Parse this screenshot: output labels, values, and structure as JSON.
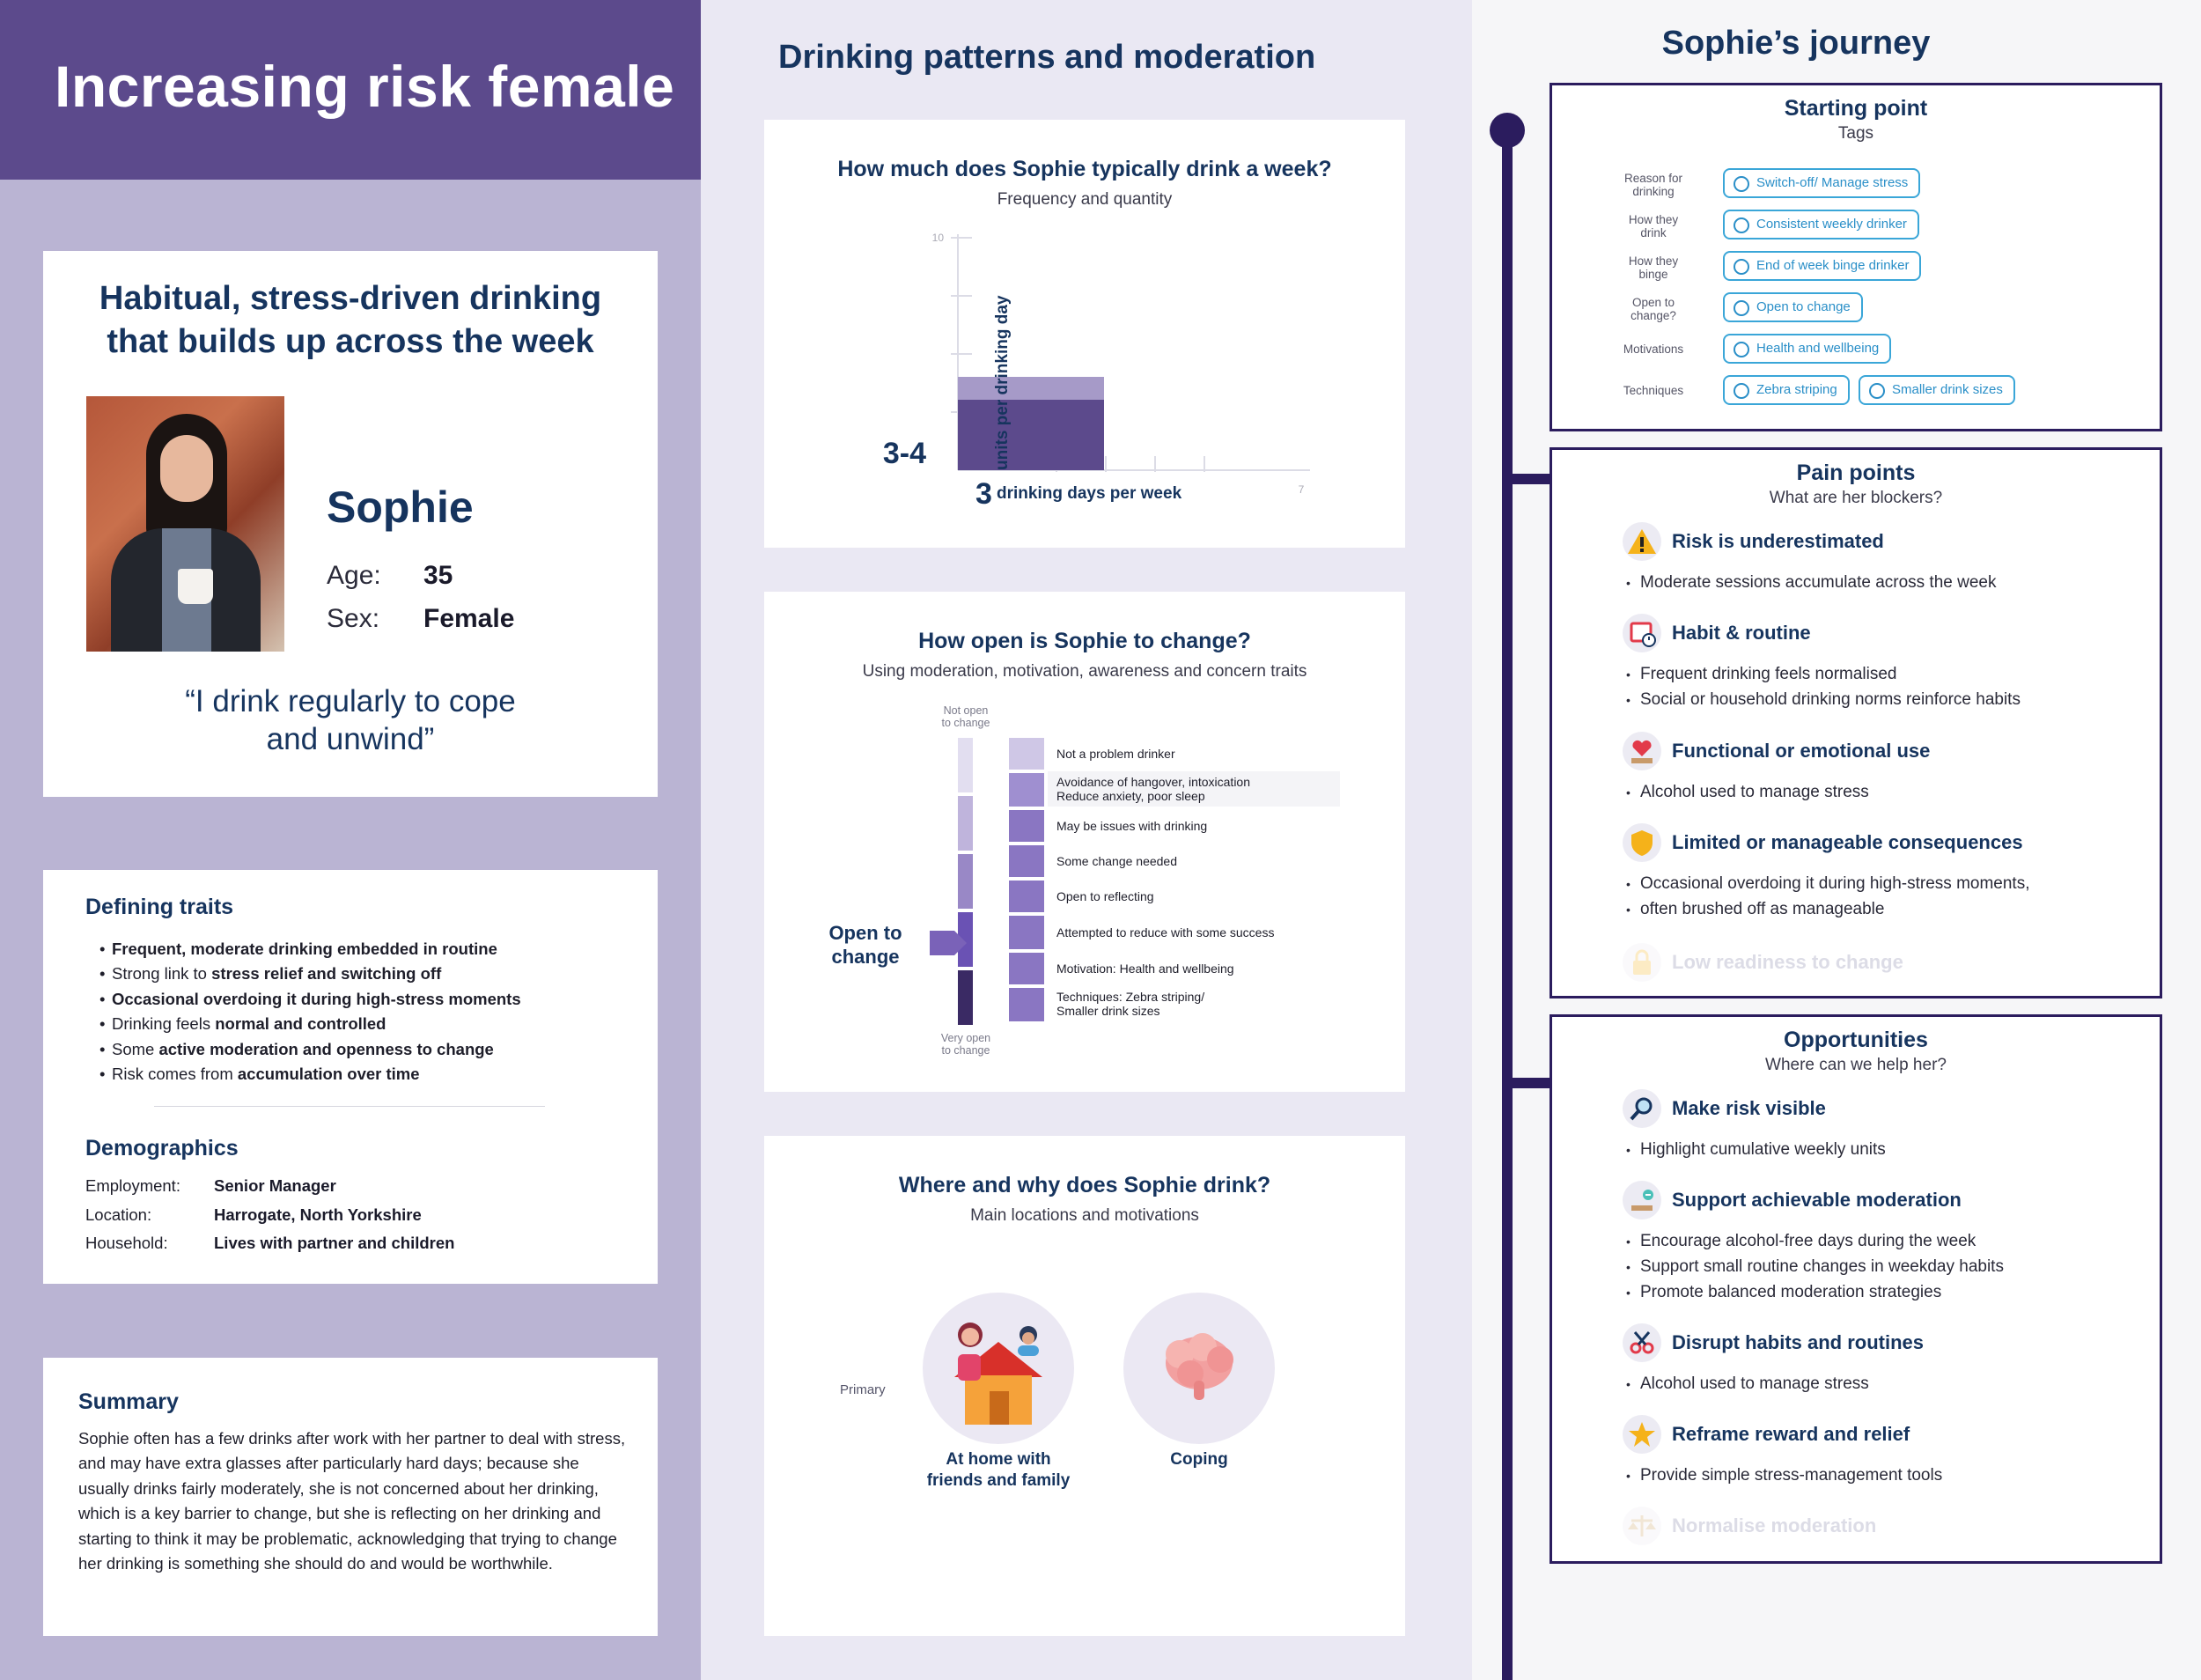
{
  "persona": {
    "header": "Increasing risk female",
    "profile_title_line1": "Habitual, stress-driven drinking",
    "profile_title_line2": "that builds up across the week",
    "name": "Sophie",
    "age_label": "Age:",
    "age": "35",
    "sex_label": "Sex:",
    "sex": "Female",
    "quote_line1": "“I drink regularly to cope",
    "quote_line2": "and unwind”"
  },
  "traits": {
    "title": "Defining traits",
    "items": [
      {
        "pre": "",
        "bold": "Frequent, moderate drinking embedded in routine",
        "post": ""
      },
      {
        "pre": "Strong link to ",
        "bold": "stress relief and switching off",
        "post": ""
      },
      {
        "pre": "",
        "bold": "Occasional overdoing it during high-stress moments",
        "post": ""
      },
      {
        "pre": "Drinking feels ",
        "bold": "normal and controlled",
        "post": ""
      },
      {
        "pre": "Some ",
        "bold": "active moderation and openness to change",
        "post": ""
      },
      {
        "pre": "Risk comes from ",
        "bold": "accumulation over time",
        "post": ""
      }
    ]
  },
  "demographics": {
    "title": "Demographics",
    "rows": [
      {
        "label": "Employment:",
        "value": "Senior Manager"
      },
      {
        "label": "Location:",
        "value": "Harrogate, North Yorkshire"
      },
      {
        "label": "Household:",
        "value": "Lives with partner and children"
      }
    ]
  },
  "summary": {
    "title": "Summary",
    "text": "Sophie often has a few drinks after work with her partner to deal with stress, and may have extra glasses after particularly hard days; because she usually drinks fairly moderately, she is not concerned about her drinking, which is a key barrier to change, but she is reflecting on her drinking and starting to think it may be problematic, acknowledging that trying to change her drinking is something she should do and would be worthwhile."
  },
  "middle": {
    "title": "Drinking patterns and moderation"
  },
  "frequency": {
    "title": "How much does Sophie typically drink a week?",
    "subtitle": "Frequency and quantity",
    "y_max_label": "10",
    "x_max_label": "7",
    "y_axis_label": "units per drinking day",
    "units_value": "3-4",
    "days_value": "3",
    "days_label": "drinking days per week"
  },
  "change": {
    "title": "How open is Sophie to change?",
    "subtitle": "Using moderation, motivation, awareness and concern traits",
    "top_label_1": "Not open",
    "top_label_2": "to change",
    "bottom_label_1": "Very open",
    "bottom_label_2": "to change",
    "marker_label_1": "Open to",
    "marker_label_2": "change",
    "levels": [
      {
        "line1": "Not a problem drinker",
        "line2": ""
      },
      {
        "line1": "Avoidance of hangover, intoxication",
        "line2": "Reduce anxiety, poor sleep"
      },
      {
        "line1": "May be issues with drinking",
        "line2": ""
      },
      {
        "line1": "Some change needed",
        "line2": ""
      },
      {
        "line1": "Open to reflecting",
        "line2": ""
      },
      {
        "line1": "Attempted to reduce with some success",
        "line2": ""
      },
      {
        "line1": "Motivation: Health and wellbeing",
        "line2": ""
      },
      {
        "line1": "Techniques: Zebra striping/",
        "line2": "Smaller drink sizes"
      }
    ]
  },
  "where": {
    "title": "Where and why does Sophie drink?",
    "subtitle": "Main locations and motivations",
    "primary_label": "Primary",
    "location_line1": "At home with",
    "location_line2": "friends and family",
    "motivation": "Coping"
  },
  "journey": {
    "title": "Sophie’s journey",
    "starting": {
      "title": "Starting point",
      "subtitle": "Tags",
      "rows": [
        {
          "label1": "Reason for",
          "label2": "drinking",
          "tags": [
            "Switch-off/ Manage stress"
          ]
        },
        {
          "label1": "How they",
          "label2": "drink",
          "tags": [
            "Consistent weekly drinker"
          ]
        },
        {
          "label1": "How they",
          "label2": "binge",
          "tags": [
            "End of week binge drinker"
          ]
        },
        {
          "label1": "Open to",
          "label2": "change?",
          "tags": [
            "Open to change"
          ]
        },
        {
          "label1": "Motivations",
          "label2": "",
          "tags": [
            "Health and  wellbeing"
          ]
        },
        {
          "label1": "Techniques",
          "label2": "",
          "tags": [
            "Zebra striping",
            "Smaller drink sizes"
          ]
        }
      ]
    },
    "pain": {
      "title": "Pain points",
      "subtitle": "What are her blockers?",
      "items": [
        {
          "icon": "warning-icon",
          "head": "Risk is underestimated",
          "bullets": [
            "Moderate sessions accumulate across the week"
          ]
        },
        {
          "icon": "calendar-clock-icon",
          "head": "Habit & routine",
          "bullets": [
            "Frequent drinking feels normalised",
            "Social or household drinking norms reinforce habits"
          ]
        },
        {
          "icon": "heart-glass-icon",
          "head": "Functional or emotional use",
          "bullets": [
            "Alcohol used to manage stress"
          ]
        },
        {
          "icon": "shield-icon",
          "head": "Limited or manageable consequences",
          "bullets": [
            "Occasional overdoing it during high-stress moments,",
            "often brushed off as manageable"
          ]
        },
        {
          "icon": "lock-icon",
          "head": "Low readiness to change",
          "bullets": []
        }
      ]
    },
    "opps": {
      "title": "Opportunities",
      "subtitle": "Where can we help her?",
      "items": [
        {
          "icon": "magnifier-icon",
          "head": "Make risk visible",
          "bullets": [
            "Highlight cumulative weekly units"
          ]
        },
        {
          "icon": "minus-glass-icon",
          "head": "Support achievable moderation",
          "bullets": [
            "Encourage alcohol-free days during the week",
            "Support small routine changes in weekday habits",
            "Promote balanced moderation strategies"
          ]
        },
        {
          "icon": "scissors-icon",
          "head": "Disrupt habits and routines",
          "bullets": [
            "Alcohol used to manage stress"
          ]
        },
        {
          "icon": "star-icon",
          "head": "Reframe reward and relief",
          "bullets": [
            "Provide simple stress-management tools"
          ]
        },
        {
          "icon": "scales-icon",
          "head": "Normalise moderation",
          "bullets": []
        }
      ]
    }
  },
  "colors": {
    "header_purple": "#5c4a8c",
    "left_bg": "#bab4d3",
    "navy": "#16345e",
    "tag_blue": "#3aa6d8",
    "timeline": "#2b1c5e"
  }
}
